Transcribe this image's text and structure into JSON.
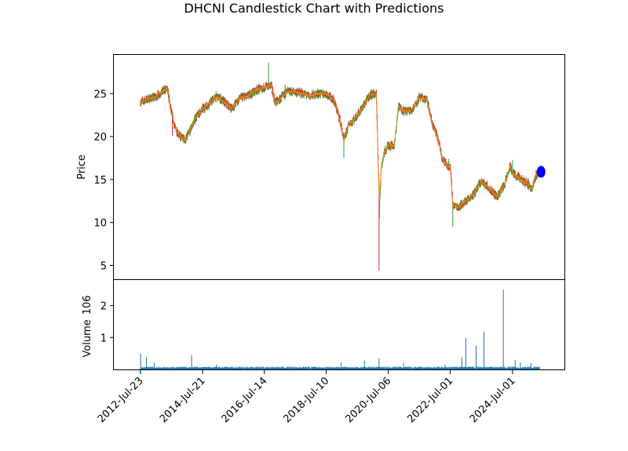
{
  "chart_data": [
    {
      "type": "candlestick",
      "title": "DHCNI Candlestick Chart with Predictions",
      "ylabel": "Price",
      "xlabel": "",
      "ylim": [
        3.4,
        29.5
      ],
      "yticks": [
        5,
        10,
        15,
        20,
        25
      ],
      "xlim": [
        "2011-09-15",
        "2026-03-01"
      ],
      "xticks": [
        "2012-Jul-23",
        "2014-Jul-21",
        "2016-Jul-14",
        "2018-Jul-10",
        "2020-Jul-06",
        "2022-Jul-01",
        "2024-Jul-01"
      ],
      "grid": false,
      "colors": {
        "up": "#2ca02c",
        "down": "#d62728",
        "close_line": "#ff7f0e",
        "prediction": "#0000ff",
        "volume": "#1f77b4"
      },
      "price_path": [
        [
          "2012-07-23",
          24.0
        ],
        [
          "2012-10-01",
          24.3
        ],
        [
          "2013-01-15",
          24.6
        ],
        [
          "2013-04-01",
          25.2
        ],
        [
          "2013-06-01",
          25.6
        ],
        [
          "2013-07-15",
          23.0
        ],
        [
          "2013-09-01",
          21.0
        ],
        [
          "2013-11-01",
          20.0
        ],
        [
          "2014-01-01",
          19.6
        ],
        [
          "2014-03-01",
          20.8
        ],
        [
          "2014-05-01",
          22.2
        ],
        [
          "2014-07-21",
          23.2
        ],
        [
          "2014-10-01",
          23.8
        ],
        [
          "2015-01-01",
          24.7
        ],
        [
          "2015-04-01",
          24.0
        ],
        [
          "2015-07-01",
          23.3
        ],
        [
          "2015-10-01",
          24.5
        ],
        [
          "2016-01-01",
          24.7
        ],
        [
          "2016-04-01",
          25.4
        ],
        [
          "2016-07-14",
          25.7
        ],
        [
          "2016-10-01",
          26.0
        ],
        [
          "2016-11-15",
          24.0
        ],
        [
          "2017-01-01",
          24.2
        ],
        [
          "2017-04-01",
          25.2
        ],
        [
          "2017-07-01",
          25.2
        ],
        [
          "2017-10-01",
          25.0
        ],
        [
          "2018-01-01",
          24.7
        ],
        [
          "2018-04-01",
          25.0
        ],
        [
          "2018-07-10",
          25.0
        ],
        [
          "2018-10-01",
          24.3
        ],
        [
          "2018-12-15",
          22.0
        ],
        [
          "2019-02-01",
          19.5
        ],
        [
          "2019-04-01",
          21.5
        ],
        [
          "2019-06-01",
          22.0
        ],
        [
          "2019-09-01",
          23.3
        ],
        [
          "2019-12-01",
          24.8
        ],
        [
          "2020-02-15",
          25.0
        ],
        [
          "2020-03-15",
          15.0
        ],
        [
          "2020-03-25",
          12.5
        ],
        [
          "2020-04-15",
          16.5
        ],
        [
          "2020-05-15",
          18.0
        ],
        [
          "2020-07-06",
          19.0
        ],
        [
          "2020-09-15",
          19.0
        ],
        [
          "2020-11-01",
          23.5
        ],
        [
          "2021-01-01",
          23.0
        ],
        [
          "2021-04-01",
          23.0
        ],
        [
          "2021-07-01",
          24.5
        ],
        [
          "2021-10-01",
          24.3
        ],
        [
          "2021-12-01",
          21.5
        ],
        [
          "2022-02-01",
          20.0
        ],
        [
          "2022-04-01",
          17.5
        ],
        [
          "2022-06-01",
          16.5
        ],
        [
          "2022-07-01",
          16.5
        ],
        [
          "2022-08-01",
          12.0
        ],
        [
          "2022-10-01",
          11.8
        ],
        [
          "2023-01-01",
          12.5
        ],
        [
          "2023-04-01",
          13.3
        ],
        [
          "2023-07-01",
          14.8
        ],
        [
          "2023-10-01",
          14.0
        ],
        [
          "2024-01-01",
          13.0
        ],
        [
          "2024-04-01",
          14.5
        ],
        [
          "2024-06-01",
          16.5
        ],
        [
          "2024-07-01",
          15.8
        ],
        [
          "2024-10-01",
          15.0
        ],
        [
          "2025-01-01",
          14.5
        ],
        [
          "2025-02-15",
          13.8
        ],
        [
          "2025-04-01",
          15.5
        ],
        [
          "2025-05-15",
          16.0
        ]
      ],
      "spikes": [
        [
          "2016-09-01",
          28.6,
          "up"
        ],
        [
          "2019-02-01",
          17.5,
          "up"
        ],
        [
          "2020-03-20",
          4.4,
          "down"
        ],
        [
          "2020-03-25",
          10.5,
          "up"
        ],
        [
          "2022-08-01",
          9.5,
          "up"
        ],
        [
          "2013-08-01",
          20.1,
          "down"
        ],
        [
          "2017-03-15",
          26.0,
          "up"
        ],
        [
          "2022-06-15",
          17.4,
          "up"
        ],
        [
          "2024-07-01",
          17.3,
          "up"
        ]
      ],
      "prediction": {
        "date": "2025-06-01",
        "value": 15.9
      }
    },
    {
      "type": "bar",
      "ylabel": "Volume",
      "yscale_label": "10^6",
      "yticks": [
        1,
        2
      ],
      "ylim": [
        0,
        2.8
      ],
      "spikes": [
        [
          "2012-07-25",
          0.5
        ],
        [
          "2012-10-01",
          0.38
        ],
        [
          "2013-01-01",
          0.22
        ],
        [
          "2014-03-15",
          0.45
        ],
        [
          "2015-01-01",
          0.15
        ],
        [
          "2019-01-01",
          0.22
        ],
        [
          "2019-10-01",
          0.28
        ],
        [
          "2020-03-20",
          0.35
        ],
        [
          "2021-01-01",
          0.2
        ],
        [
          "2022-05-01",
          0.15
        ],
        [
          "2022-11-15",
          0.38
        ],
        [
          "2023-01-01",
          0.98
        ],
        [
          "2023-05-01",
          0.75
        ],
        [
          "2023-08-01",
          1.18
        ],
        [
          "2024-03-15",
          2.5
        ],
        [
          "2024-08-01",
          0.3
        ],
        [
          "2024-10-01",
          0.22
        ],
        [
          "2025-02-01",
          0.2
        ]
      ],
      "baseline": 0.06
    }
  ]
}
